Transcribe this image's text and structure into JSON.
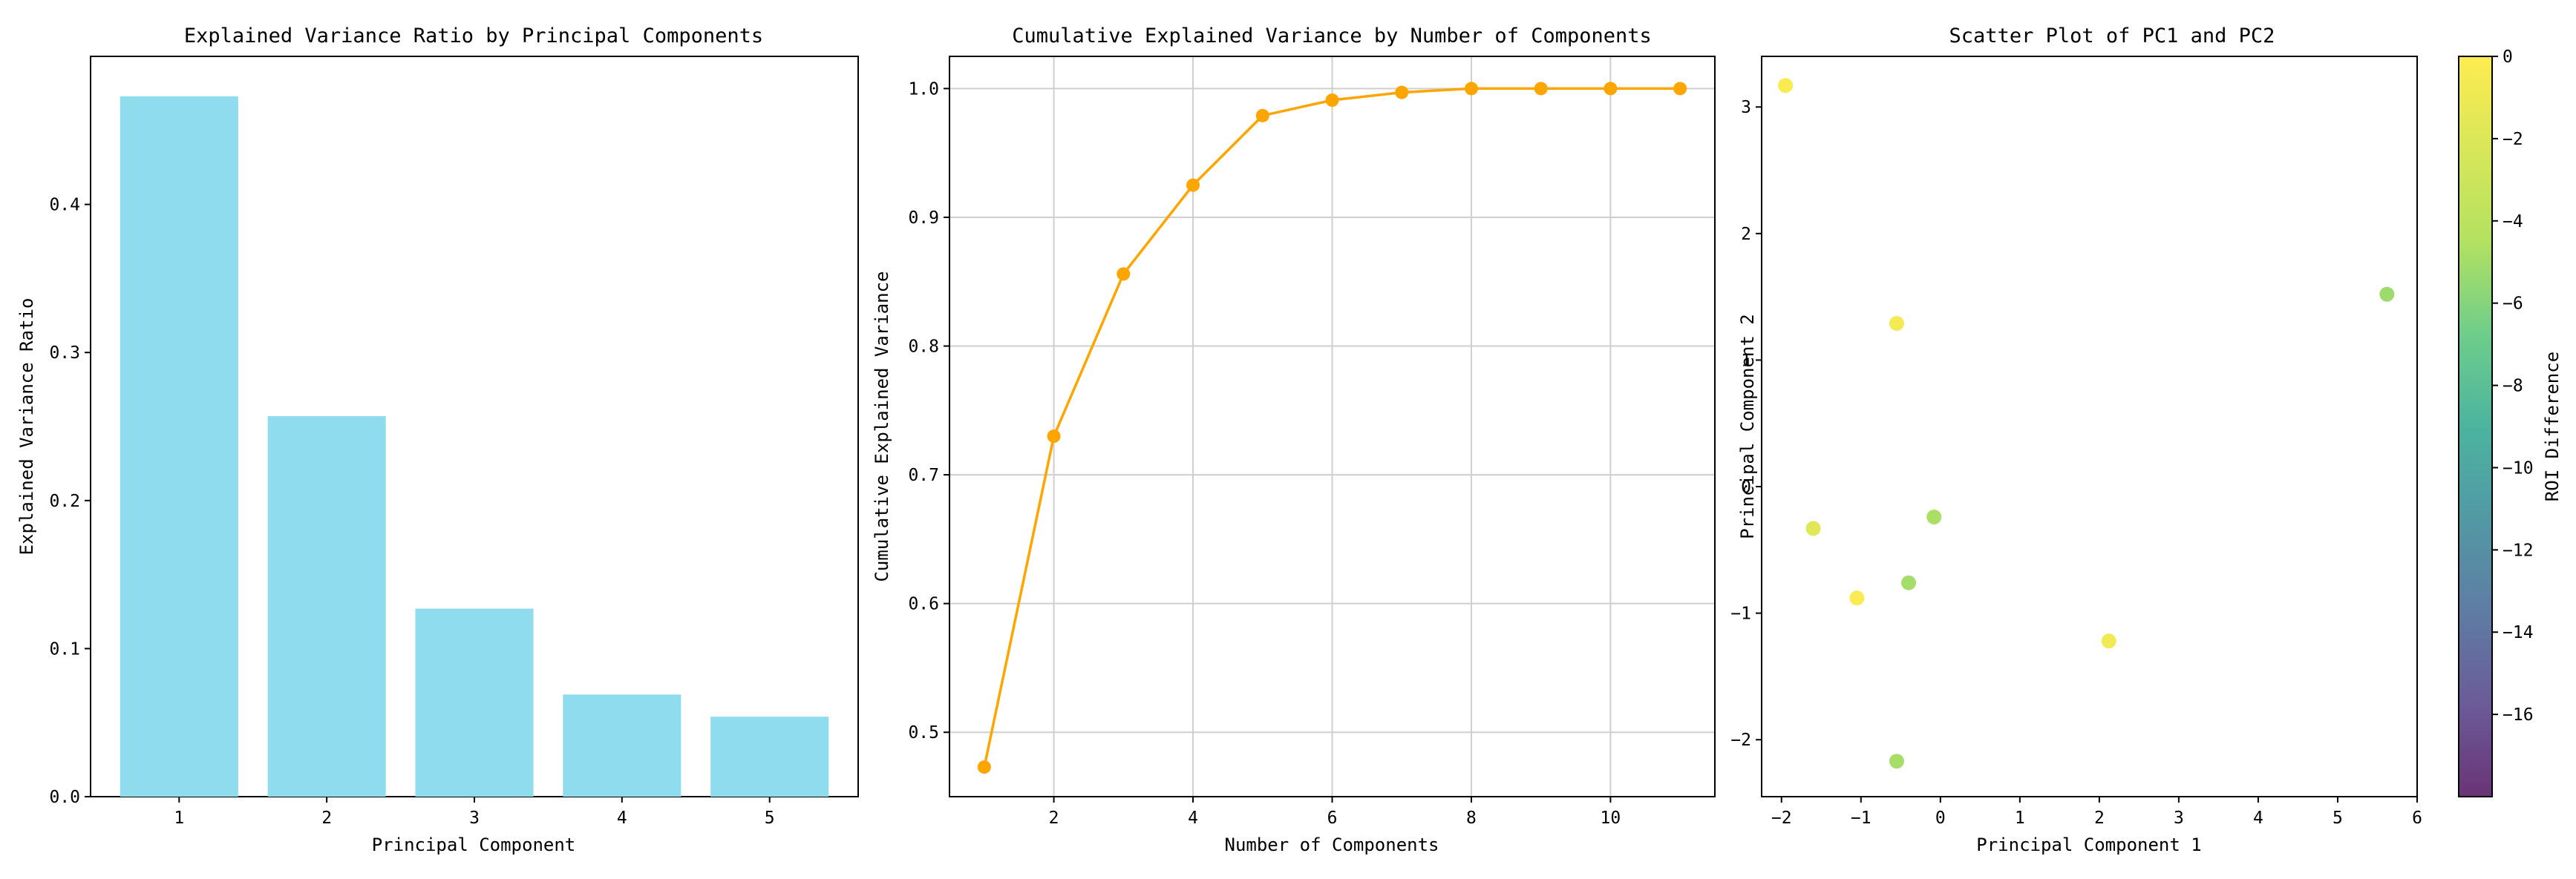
{
  "chart_data": [
    {
      "type": "bar",
      "title": "Explained Variance Ratio by Principal Components",
      "xlabel": "Principal Component",
      "ylabel": "Explained Variance Ratio",
      "categories": [
        "1",
        "2",
        "3",
        "4",
        "5"
      ],
      "values": [
        0.473,
        0.257,
        0.127,
        0.069,
        0.054
      ],
      "ylim": [
        0,
        0.5
      ],
      "yticks": [
        "0.0",
        "0.1",
        "0.2",
        "0.3",
        "0.4"
      ],
      "color": "#8fdcef",
      "grid": false
    },
    {
      "type": "line",
      "title": "Cumulative Explained Variance by Number of Components",
      "xlabel": "Number of Components",
      "ylabel": "Cumulative Explained Variance",
      "x": [
        1,
        2,
        3,
        4,
        5,
        6,
        7,
        8,
        9,
        10,
        11
      ],
      "y": [
        0.473,
        0.73,
        0.856,
        0.925,
        0.979,
        0.991,
        0.997,
        1.0,
        1.0,
        1.0,
        1.0
      ],
      "xlim": [
        0.5,
        11.5
      ],
      "ylim": [
        0.45,
        1.025
      ],
      "xticks": [
        "2",
        "4",
        "6",
        "8",
        "10"
      ],
      "yticks": [
        "0.5",
        "0.6",
        "0.7",
        "0.8",
        "0.9",
        "1.0"
      ],
      "color": "#ffa500",
      "grid": true
    },
    {
      "type": "scatter",
      "title": "Scatter Plot of PC1 and PC2",
      "xlabel": "Principal Component 1",
      "ylabel": "Principal Component 2",
      "points": [
        {
          "x": -1.95,
          "y": 3.17,
          "c": -0.2
        },
        {
          "x": -0.55,
          "y": 1.29,
          "c": -0.6
        },
        {
          "x": 5.62,
          "y": 1.52,
          "c": -5.2
        },
        {
          "x": -1.6,
          "y": -0.33,
          "c": -1.8
        },
        {
          "x": -0.08,
          "y": -0.24,
          "c": -4.8
        },
        {
          "x": -0.4,
          "y": -0.76,
          "c": -5.0
        },
        {
          "x": -1.05,
          "y": -0.88,
          "c": -0.3
        },
        {
          "x": 2.12,
          "y": -1.22,
          "c": -0.8
        },
        {
          "x": -0.55,
          "y": -2.17,
          "c": -4.9
        }
      ],
      "xlim": [
        -2.25,
        6.0
      ],
      "ylim": [
        -2.45,
        3.4
      ],
      "xticks": [
        "−2",
        "−1",
        "0",
        "1",
        "2",
        "3",
        "4",
        "5",
        "6"
      ],
      "yticks": [
        "−2",
        "−1",
        "0",
        "1",
        "2",
        "3"
      ],
      "colorbar": {
        "label": "ROI Difference",
        "range": [
          -18,
          0
        ],
        "ticks": [
          "0",
          "−2",
          "−4",
          "−6",
          "−8",
          "−10",
          "−12",
          "−14",
          "−16"
        ],
        "colormap": "viridis",
        "alpha": 0.8
      },
      "grid": false
    }
  ]
}
